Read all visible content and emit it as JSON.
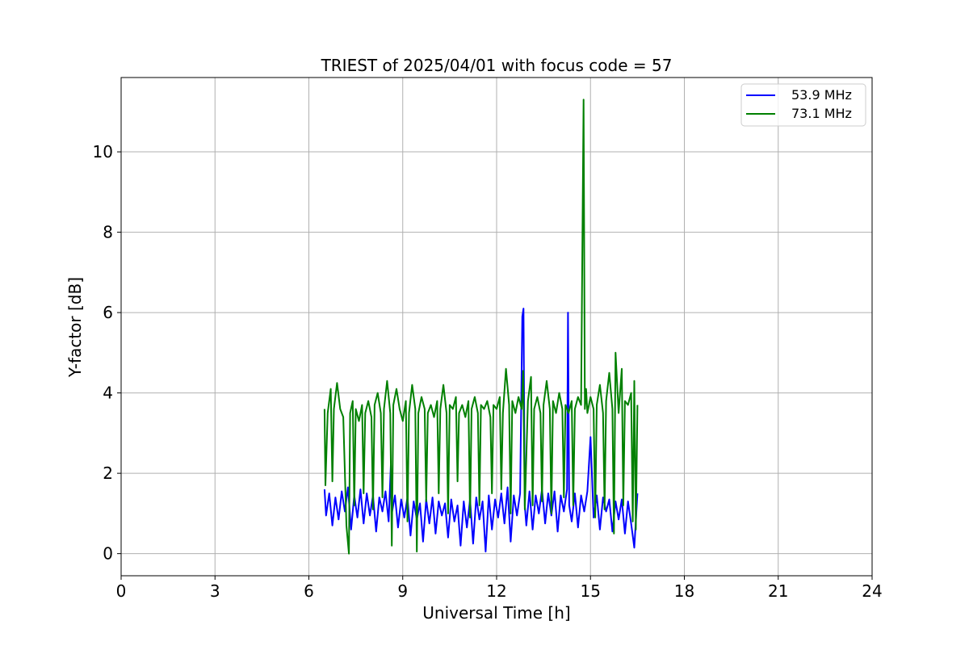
{
  "chart_data": {
    "type": "line",
    "title": "TRIEST of 2025/04/01 with focus code = 57",
    "xlabel": "Universal Time [h]",
    "ylabel": "Y-factor [dB]",
    "xlim": [
      0,
      24
    ],
    "ylim": [
      -0.55,
      11.85
    ],
    "xticks": [
      0,
      3,
      6,
      9,
      12,
      15,
      18,
      21,
      24
    ],
    "yticks": [
      0,
      2,
      4,
      6,
      8,
      10
    ],
    "grid": true,
    "legend_position": "top-right",
    "series": [
      {
        "name": "53.9 MHz",
        "color": "#0000ff",
        "x": [
          6.5,
          6.55,
          6.65,
          6.75,
          6.85,
          6.95,
          7.05,
          7.15,
          7.25,
          7.35,
          7.45,
          7.55,
          7.65,
          7.75,
          7.85,
          7.95,
          8.05,
          8.15,
          8.25,
          8.35,
          8.45,
          8.55,
          8.62,
          8.65,
          8.75,
          8.85,
          8.95,
          9.05,
          9.15,
          9.25,
          9.35,
          9.45,
          9.55,
          9.65,
          9.75,
          9.85,
          9.95,
          10.05,
          10.15,
          10.25,
          10.35,
          10.45,
          10.55,
          10.65,
          10.75,
          10.85,
          10.95,
          11.05,
          11.15,
          11.25,
          11.35,
          11.45,
          11.55,
          11.65,
          11.75,
          11.85,
          11.95,
          12.05,
          12.15,
          12.25,
          12.35,
          12.45,
          12.55,
          12.65,
          12.75,
          12.82,
          12.86,
          12.9,
          12.95,
          13.05,
          13.15,
          13.25,
          13.35,
          13.45,
          13.55,
          13.65,
          13.75,
          13.85,
          13.95,
          14.05,
          14.15,
          14.25,
          14.28,
          14.32,
          14.4,
          14.5,
          14.6,
          14.7,
          14.8,
          14.9,
          15.0,
          15.1,
          15.2,
          15.3,
          15.4,
          15.5,
          15.6,
          15.7,
          15.8,
          15.9,
          16.0,
          16.1,
          16.2,
          16.3,
          16.4,
          16.5
        ],
        "y": [
          1.6,
          0.95,
          1.5,
          0.7,
          1.4,
          0.85,
          1.55,
          1.05,
          1.65,
          0.6,
          1.45,
          0.9,
          1.6,
          0.75,
          1.5,
          0.95,
          1.45,
          0.55,
          1.4,
          1.05,
          1.55,
          0.8,
          2.2,
          1.0,
          1.45,
          0.65,
          1.35,
          0.9,
          1.4,
          0.45,
          1.3,
          0.85,
          1.25,
          0.3,
          1.35,
          0.75,
          1.4,
          0.5,
          1.3,
          0.95,
          1.25,
          0.4,
          1.35,
          0.8,
          1.2,
          0.2,
          1.3,
          0.65,
          1.35,
          0.25,
          1.4,
          0.85,
          1.3,
          0.05,
          1.45,
          0.6,
          1.35,
          0.9,
          1.5,
          0.75,
          1.65,
          0.3,
          1.45,
          0.95,
          1.5,
          5.9,
          6.1,
          1.2,
          0.7,
          1.55,
          0.6,
          1.45,
          1.0,
          1.6,
          0.75,
          1.5,
          0.95,
          1.55,
          0.55,
          1.45,
          1.05,
          1.6,
          6.0,
          1.2,
          0.8,
          1.5,
          0.65,
          1.45,
          1.05,
          1.55,
          2.9,
          0.9,
          1.45,
          0.6,
          1.4,
          1.05,
          1.35,
          0.55,
          1.3,
          0.85,
          1.35,
          0.5,
          1.3,
          0.75,
          0.15,
          1.5
        ]
      },
      {
        "name": "73.1 MHz",
        "color": "#008000",
        "x": [
          6.5,
          6.53,
          6.6,
          6.7,
          6.75,
          6.8,
          6.9,
          7.0,
          7.1,
          7.2,
          7.28,
          7.32,
          7.4,
          7.45,
          7.5,
          7.6,
          7.7,
          7.75,
          7.8,
          7.9,
          8.0,
          8.05,
          8.1,
          8.2,
          8.3,
          8.35,
          8.4,
          8.5,
          8.6,
          8.65,
          8.7,
          8.8,
          8.9,
          9.0,
          9.1,
          9.15,
          9.2,
          9.3,
          9.4,
          9.45,
          9.5,
          9.6,
          9.7,
          9.75,
          9.8,
          9.9,
          10.0,
          10.1,
          10.15,
          10.2,
          10.3,
          10.4,
          10.45,
          10.5,
          10.6,
          10.7,
          10.75,
          10.8,
          10.9,
          11.0,
          11.1,
          11.15,
          11.2,
          11.3,
          11.4,
          11.45,
          11.5,
          11.6,
          11.7,
          11.8,
          11.85,
          11.9,
          12.0,
          12.1,
          12.15,
          12.2,
          12.3,
          12.4,
          12.45,
          12.5,
          12.6,
          12.7,
          12.8,
          12.85,
          12.9,
          13.0,
          13.1,
          13.15,
          13.2,
          13.3,
          13.4,
          13.45,
          13.5,
          13.6,
          13.7,
          13.75,
          13.8,
          13.9,
          14.0,
          14.1,
          14.15,
          14.2,
          14.3,
          14.4,
          14.45,
          14.5,
          14.6,
          14.7,
          14.78,
          14.82,
          14.86,
          14.9,
          15.0,
          15.1,
          15.15,
          15.2,
          15.3,
          15.4,
          15.45,
          15.5,
          15.6,
          15.7,
          15.75,
          15.8,
          15.9,
          16.0,
          16.05,
          16.1,
          16.2,
          16.3,
          16.35,
          16.4,
          16.45,
          16.5
        ],
        "y": [
          3.6,
          1.7,
          3.5,
          4.1,
          1.8,
          3.6,
          4.25,
          3.6,
          3.4,
          0.7,
          0.0,
          3.5,
          3.8,
          1.2,
          3.6,
          3.3,
          3.7,
          1.5,
          3.5,
          3.8,
          3.4,
          1.1,
          3.7,
          4.0,
          3.5,
          1.4,
          3.6,
          4.3,
          3.5,
          0.2,
          3.7,
          4.1,
          3.6,
          3.3,
          3.8,
          0.8,
          3.5,
          4.2,
          3.6,
          0.05,
          3.5,
          3.9,
          3.6,
          1.3,
          3.5,
          3.7,
          3.4,
          3.8,
          1.5,
          3.6,
          4.2,
          3.5,
          1.0,
          3.7,
          3.6,
          3.9,
          1.8,
          3.5,
          3.7,
          3.4,
          3.8,
          0.9,
          3.6,
          3.9,
          3.5,
          1.2,
          3.7,
          3.6,
          3.8,
          3.4,
          1.5,
          3.7,
          3.6,
          3.9,
          1.6,
          3.5,
          4.6,
          3.7,
          1.0,
          3.8,
          3.5,
          3.9,
          3.6,
          4.55,
          1.1,
          3.8,
          4.4,
          1.2,
          3.6,
          3.9,
          3.5,
          1.3,
          3.7,
          4.3,
          3.6,
          1.0,
          3.8,
          3.5,
          4.0,
          3.6,
          1.4,
          3.7,
          3.5,
          3.8,
          1.2,
          3.6,
          3.9,
          3.7,
          11.3,
          3.6,
          4.1,
          3.5,
          3.9,
          3.6,
          0.9,
          3.7,
          4.2,
          3.5,
          1.1,
          3.8,
          4.5,
          3.6,
          0.5,
          5.0,
          3.5,
          4.6,
          1.2,
          3.8,
          3.7,
          4.0,
          0.8,
          4.3,
          0.6,
          3.7
        ]
      }
    ]
  }
}
